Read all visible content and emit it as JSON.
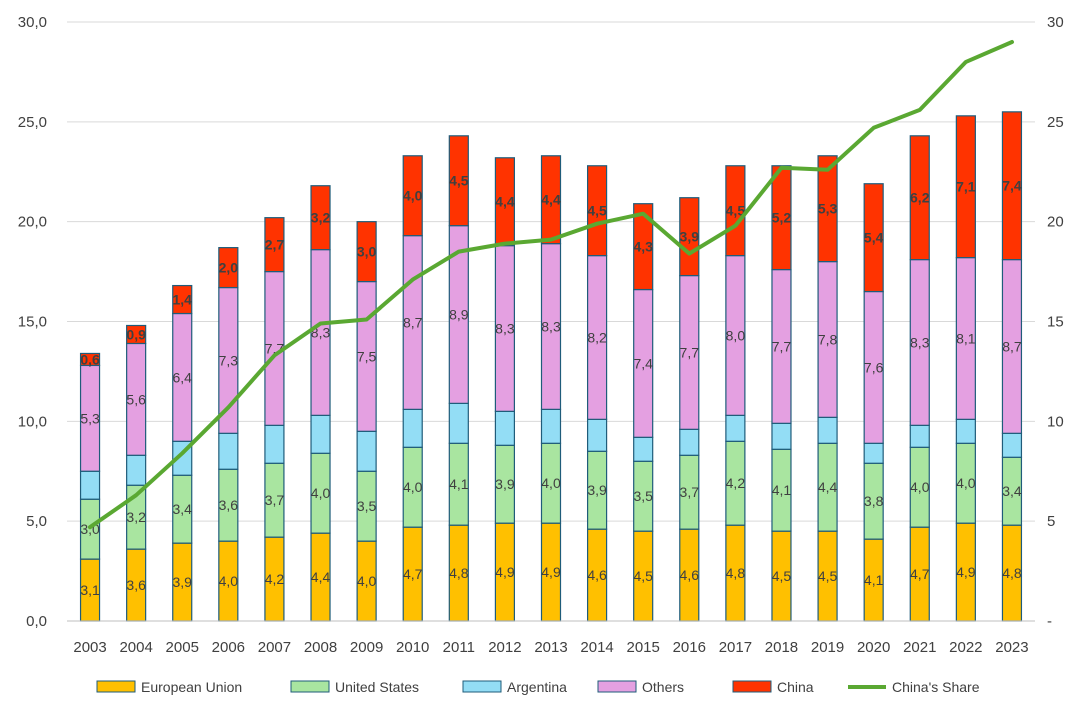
{
  "chart_data": {
    "type": "bar",
    "stacked": true,
    "categories": [
      "2003",
      "2004",
      "2005",
      "2006",
      "2007",
      "2008",
      "2009",
      "2010",
      "2011",
      "2012",
      "2013",
      "2014",
      "2015",
      "2016",
      "2017",
      "2018",
      "2019",
      "2020",
      "2021",
      "2022",
      "2023"
    ],
    "series": [
      {
        "name": "European Union",
        "color": "#FFC000",
        "values": [
          3.1,
          3.6,
          3.9,
          4.0,
          4.2,
          4.4,
          4.0,
          4.7,
          4.8,
          4.9,
          4.9,
          4.6,
          4.5,
          4.6,
          4.8,
          4.5,
          4.5,
          4.1,
          4.7,
          4.9,
          4.8
        ],
        "labels": [
          "3,1",
          "3,6",
          "3,9",
          "4,0",
          "4,2",
          "4,4",
          "4,0",
          "4,7",
          "4,8",
          "4,9",
          "4,9",
          "4,6",
          "4,5",
          "4,6",
          "4,8",
          "4,5",
          "4,5",
          "4,1",
          "4,7",
          "4,9",
          "4,8"
        ]
      },
      {
        "name": "United States",
        "color": "#A9E5A0",
        "values": [
          3.0,
          3.2,
          3.4,
          3.6,
          3.7,
          4.0,
          3.5,
          4.0,
          4.1,
          3.9,
          4.0,
          3.9,
          3.5,
          3.7,
          4.2,
          4.1,
          4.4,
          3.8,
          4.0,
          4.0,
          3.4
        ],
        "labels": [
          "3,0",
          "3,2",
          "3,4",
          "3,6",
          "3,7",
          "4,0",
          "3,5",
          "4,0",
          "4,1",
          "3,9",
          "4,0",
          "3,9",
          "3,5",
          "3,7",
          "4,2",
          "4,1",
          "4,4",
          "3,8",
          "4,0",
          "4,0",
          "3,4"
        ]
      },
      {
        "name": "Argentina",
        "color": "#93DDF5",
        "values": [
          1.4,
          1.5,
          1.7,
          1.8,
          1.9,
          1.9,
          2.0,
          1.9,
          2.0,
          1.7,
          1.7,
          1.6,
          1.2,
          1.3,
          1.3,
          1.3,
          1.3,
          1.0,
          1.1,
          1.2,
          1.2
        ],
        "labels": []
      },
      {
        "name": "Others",
        "color": "#E4A0E1",
        "values": [
          5.3,
          5.6,
          6.4,
          7.3,
          7.7,
          8.3,
          7.5,
          8.7,
          8.9,
          8.3,
          8.3,
          8.2,
          7.4,
          7.7,
          8.0,
          7.7,
          7.8,
          7.6,
          8.3,
          8.1,
          8.7
        ],
        "labels": [
          "5,3",
          "5,6",
          "6,4",
          "7,3",
          "7,7",
          "8,3",
          "7,5",
          "8,7",
          "8,9",
          "8,3",
          "8,3",
          "8,2",
          "7,4",
          "7,7",
          "8,0",
          "7,7",
          "7,8",
          "7,6",
          "8,3",
          "8,1",
          "8,7"
        ]
      },
      {
        "name": "China",
        "color": "#FF3300",
        "values": [
          0.6,
          0.9,
          1.4,
          2.0,
          2.7,
          3.2,
          3.0,
          4.0,
          4.5,
          4.4,
          4.4,
          4.5,
          4.3,
          3.9,
          4.5,
          5.2,
          5.3,
          5.4,
          6.2,
          7.1,
          7.4
        ],
        "labels": [
          "0,6",
          "0,9",
          "1,4",
          "2,0",
          "2,7",
          "3,2",
          "3,0",
          "4,0",
          "4,5",
          "4,4",
          "4,4",
          "4,5",
          "4,3",
          "3,9",
          "4,5",
          "5,2",
          "5,3",
          "5,4",
          "6,2",
          "7,1",
          "7,4"
        ]
      }
    ],
    "line_series": {
      "name": "China's Share",
      "color": "#5AA832",
      "axis": "right",
      "values": [
        4.7,
        6.3,
        8.4,
        10.7,
        13.3,
        14.9,
        15.1,
        17.1,
        18.5,
        18.9,
        19.1,
        19.9,
        20.4,
        18.4,
        19.8,
        22.7,
        22.6,
        24.7,
        25.6,
        28.0,
        29.0
      ]
    },
    "left_axis": {
      "ylim": [
        0,
        30
      ],
      "ticks": [
        0,
        5,
        10,
        15,
        20,
        25,
        30
      ],
      "tick_labels": [
        "0,0",
        "5,0",
        "10,0",
        "15,0",
        "20,0",
        "25,0",
        "30,0"
      ]
    },
    "right_axis": {
      "ylim": [
        0,
        30
      ],
      "ticks": [
        0,
        5,
        10,
        15,
        20,
        25,
        30
      ],
      "tick_labels": [
        "-",
        "5",
        "10",
        "15",
        "20",
        "25",
        "30"
      ]
    },
    "grid": true,
    "legend_position": "bottom",
    "title": "",
    "xlabel": "",
    "ylabel": ""
  }
}
